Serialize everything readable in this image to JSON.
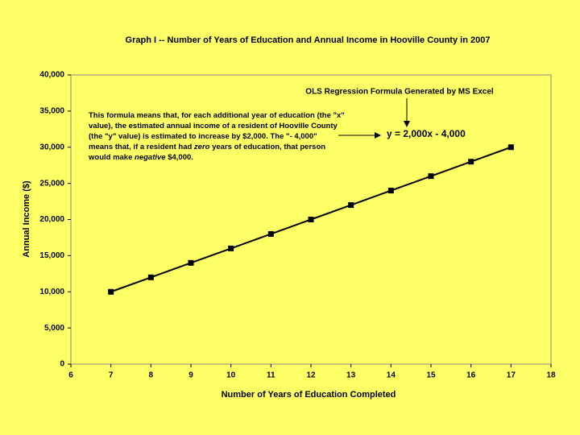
{
  "chart_data": {
    "type": "line",
    "title": "Graph I -- Number of Years of Education and Annual Income in Hooville County in 2007",
    "x_label": "Number of Years of Education Completed",
    "y_label": "Annual Income ($)",
    "x": [
      7,
      8,
      9,
      10,
      11,
      12,
      13,
      14,
      15,
      16,
      17
    ],
    "series": [
      {
        "name": "Annual Income",
        "color": "#000000",
        "values": [
          10000,
          12000,
          14000,
          16000,
          18000,
          20000,
          22000,
          24000,
          26000,
          28000,
          30000
        ]
      }
    ],
    "xlim": [
      6,
      18
    ],
    "xticks": [
      6,
      7,
      8,
      9,
      10,
      11,
      12,
      13,
      14,
      15,
      16,
      17,
      18
    ],
    "ylim": [
      0,
      40000
    ],
    "yticks": [
      0,
      {
        "value": 5000,
        "label": "5,000"
      },
      {
        "value": 10000,
        "label": "10,000"
      },
      {
        "value": 15000,
        "label": "15,000"
      },
      {
        "value": 20000,
        "label": "20,000"
      },
      {
        "value": 25000,
        "label": "25,000"
      },
      {
        "value": 30000,
        "label": "30,000"
      },
      {
        "value": 35000,
        "label": "35,000"
      },
      {
        "value": 40000,
        "label": "40,000"
      }
    ],
    "grid": false,
    "annotations": {
      "source_note": "OLS Regression Formula Generated by MS Excel",
      "equation": "y = 2,000x - 4,000",
      "explanation": [
        [
          "This formula means that, for each additional year of education (the \"x\""
        ],
        [
          "value), the estimated annual income of a resident of Hooville County"
        ],
        [
          "(the \"y\" value) is estimated to increase by $2,000.  The \"- 4,000\""
        ],
        [
          "means that, if a resident had ",
          "zero",
          " years of education, that person"
        ],
        [
          "would make ",
          "negative",
          " $4,000."
        ]
      ]
    }
  }
}
